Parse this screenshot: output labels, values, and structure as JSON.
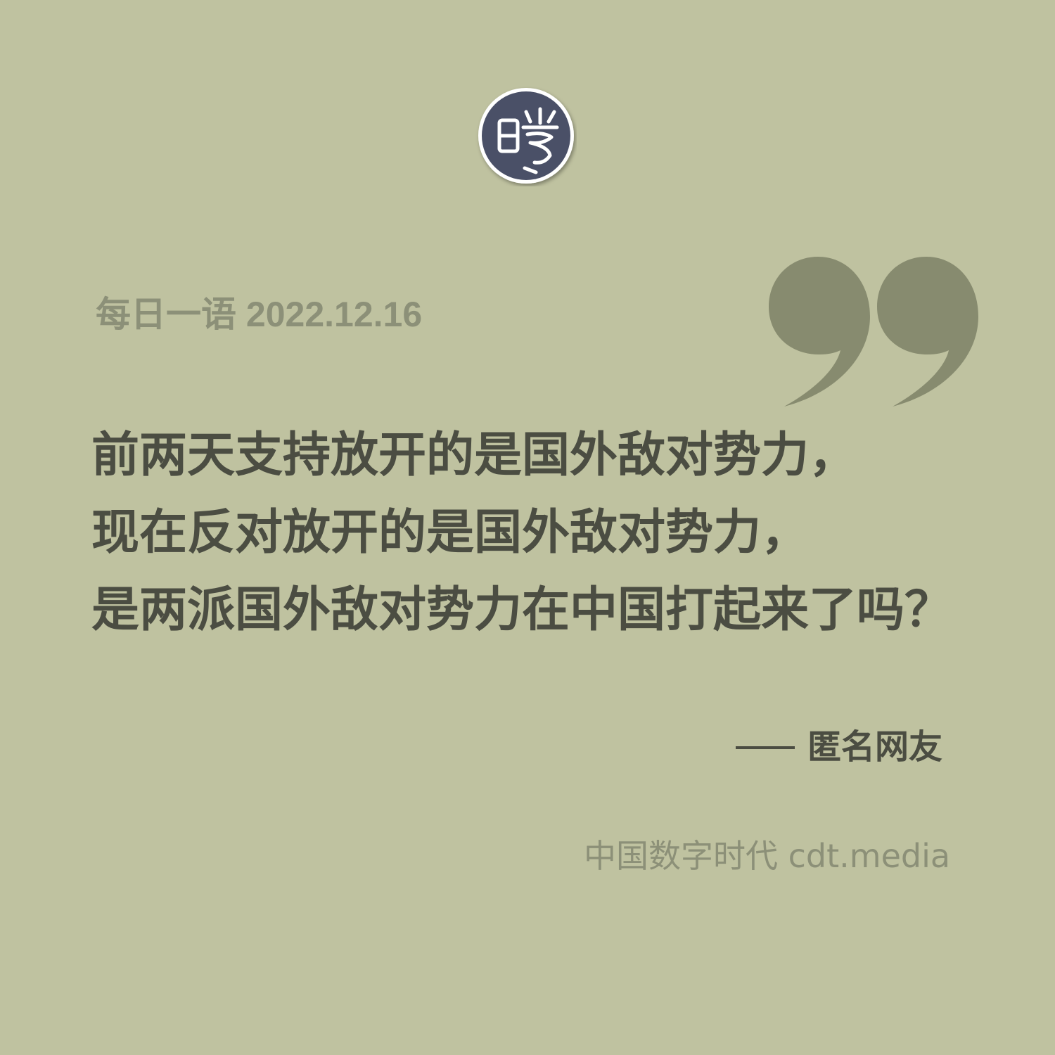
{
  "logo": {
    "icon": "cdt-seal-logo-icon",
    "glyph": "曉",
    "colors": {
      "fill": "#4a5067",
      "ring": "#ffffff"
    }
  },
  "header": {
    "date_label": "每日一语 2022.12.16"
  },
  "quote": {
    "icon": "quotation-mark-icon",
    "lines": [
      "前两天支持放开的是国外敌对势力，",
      "现在反对放开的是国外敌对势力，",
      "是两派国外敌对势力在中国打起来了吗？"
    ],
    "attribution": "匿名网友"
  },
  "footer": {
    "brand": "中国数字时代 cdt.media"
  },
  "colors": {
    "background": "#bfc2a0",
    "muted_text": "#8c9078",
    "main_text": "#4b4d42",
    "quote_mark": "#878b6f"
  }
}
